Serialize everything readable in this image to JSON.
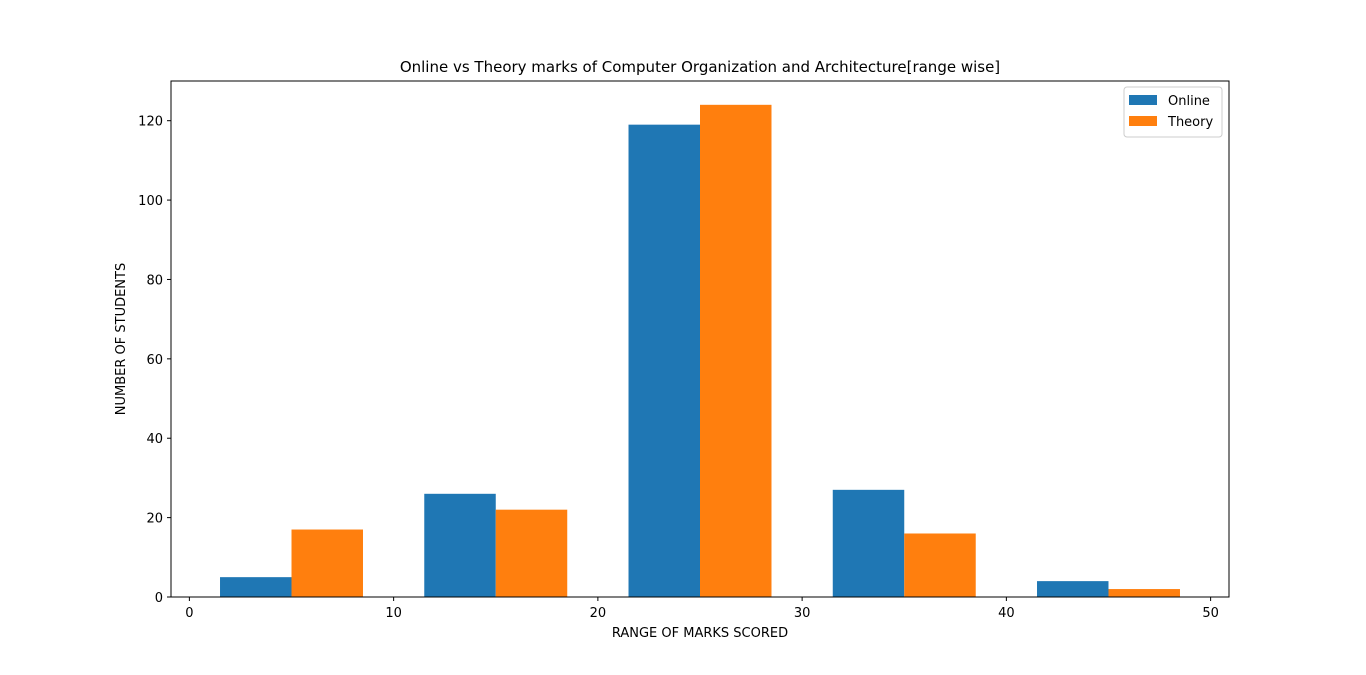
{
  "chart_data": {
    "type": "bar",
    "title": "Online vs Theory marks of Computer Organization and Architecture[range wise]",
    "xlabel": "RANGE OF MARKS SCORED",
    "ylabel": "NUMBER OF STUDENTS",
    "xlim": [
      -0.9,
      50.9
    ],
    "ylim": [
      0,
      130
    ],
    "xticks": [
      0,
      10,
      20,
      30,
      40,
      50
    ],
    "yticks": [
      0,
      20,
      40,
      60,
      80,
      100,
      120
    ],
    "bar_width": 3.5,
    "grid": false,
    "legend_position": "upper right",
    "series": [
      {
        "name": "Online",
        "color": "#1f77b4",
        "x": [
          1.5,
          11.5,
          21.5,
          31.5,
          41.5
        ],
        "values": [
          5,
          26,
          119,
          27,
          4
        ]
      },
      {
        "name": "Theory",
        "color": "#ff7f0e",
        "x": [
          5.0,
          15.0,
          25.0,
          35.0,
          45.0
        ],
        "values": [
          17,
          22,
          124,
          16,
          2
        ]
      }
    ]
  }
}
